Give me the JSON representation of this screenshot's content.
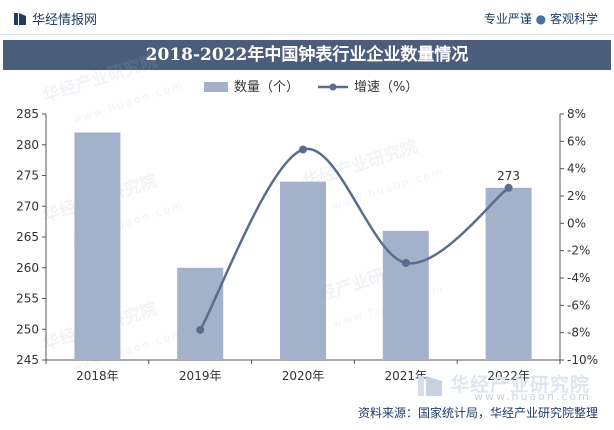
{
  "header": {
    "brand": "华经情报网",
    "tagline_left": "专业严谨",
    "tagline_right": "客观科学",
    "brand_color": "#1f3c66"
  },
  "chart_data": {
    "type": "bar+line",
    "title": "2018-2022年中国钟表行业企业数量情况",
    "categories": [
      "2018年",
      "2019年",
      "2020年",
      "2021年",
      "2022年"
    ],
    "series": [
      {
        "name": "数量（个）",
        "type": "bar",
        "axis": "left",
        "color": "#a3b1cb",
        "values": [
          282,
          260,
          274,
          266,
          273
        ]
      },
      {
        "name": "增速（%）",
        "type": "line",
        "axis": "right",
        "color": "#5a6d8e",
        "values": [
          null,
          -7.8,
          5.4,
          -2.9,
          2.6
        ]
      }
    ],
    "data_labels": [
      {
        "category": "2022年",
        "series": "数量（个）",
        "text": "273"
      }
    ],
    "y_left": {
      "min": 245,
      "max": 285,
      "step": 5,
      "ticks": [
        "245",
        "250",
        "255",
        "260",
        "265",
        "270",
        "275",
        "280",
        "285"
      ]
    },
    "y_right": {
      "min": -10,
      "max": 8,
      "step": 2,
      "ticks": [
        "-10%",
        "-8%",
        "-6%",
        "-4%",
        "-2%",
        "0%",
        "2%",
        "4%",
        "6%",
        "8%"
      ]
    },
    "legend_position": "top-center",
    "grid": false
  },
  "source_text": "资料来源：国家统计局，华经产业研究院整理",
  "watermark": {
    "text": "华经产业研究院",
    "url": "www.huaon.com"
  }
}
